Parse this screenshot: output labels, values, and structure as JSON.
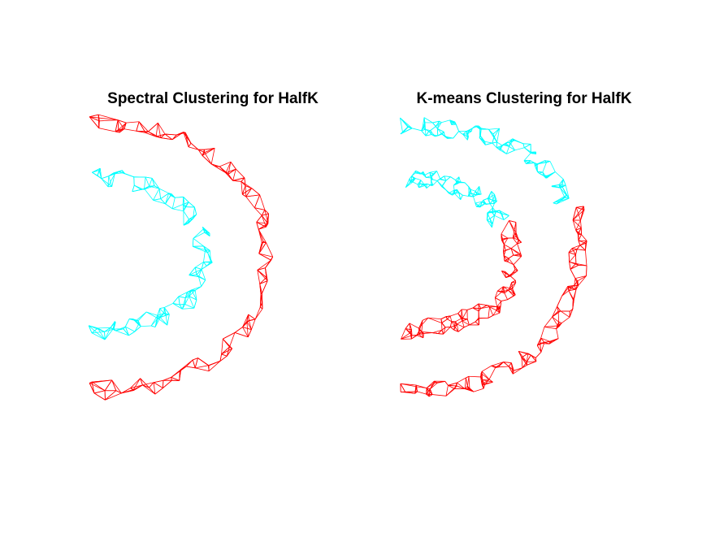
{
  "chart_data": [
    {
      "type": "scatter",
      "style": "k-nearest-neighbour graph edges drawn between points",
      "title": "Spectral Clustering for HalfK",
      "xlabel": "",
      "ylabel": "",
      "axes_visible": false,
      "grid": false,
      "legend": "none",
      "series": [
        {
          "color": "#ff0000",
          "shape": "outer half-ring",
          "points": [
            [
              -7.2,
              8.2
            ],
            [
              -5.5,
              8.0
            ],
            [
              -3.5,
              7.8
            ],
            [
              -1.5,
              7.2
            ],
            [
              0.2,
              6.2
            ],
            [
              1.6,
              5.0
            ],
            [
              2.6,
              3.4
            ],
            [
              3.2,
              1.6
            ],
            [
              3.4,
              0.0
            ],
            [
              3.2,
              -1.6
            ],
            [
              2.6,
              -3.4
            ],
            [
              1.6,
              -5.0
            ],
            [
              0.2,
              -6.2
            ],
            [
              -1.5,
              -7.2
            ],
            [
              -3.5,
              -7.8
            ],
            [
              -5.5,
              -8.0
            ],
            [
              -7.2,
              -8.2
            ]
          ]
        },
        {
          "color": "#00ffff",
          "shape": "inner half-ring",
          "points": [
            [
              -7.2,
              4.9
            ],
            [
              -5.5,
              4.8
            ],
            [
              -3.9,
              4.4
            ],
            [
              -2.4,
              3.6
            ],
            [
              -1.3,
              2.5
            ],
            [
              -0.8,
              1.3
            ],
            [
              -0.6,
              0.0
            ],
            [
              -0.8,
              -1.3
            ],
            [
              -1.4,
              -2.5
            ],
            [
              -2.4,
              -3.3
            ],
            [
              -3.9,
              -3.9
            ],
            [
              -5.5,
              -4.3
            ],
            [
              -7.2,
              -4.6
            ]
          ]
        }
      ]
    },
    {
      "type": "scatter",
      "style": "k-nearest-neighbour graph edges drawn between points",
      "title": "K-means Clustering for HalfK",
      "xlabel": "",
      "ylabel": "",
      "axes_visible": false,
      "grid": false,
      "legend": "none",
      "series": [
        {
          "color": "#00ffff",
          "shape": "upper part of outer ring",
          "points": [
            [
              -7.2,
              8.2
            ],
            [
              -5.5,
              8.0
            ],
            [
              -3.5,
              7.8
            ],
            [
              -1.5,
              7.2
            ],
            [
              0.2,
              6.2
            ],
            [
              1.6,
              5.0
            ],
            [
              2.3,
              3.8
            ]
          ]
        },
        {
          "color": "#00ffff",
          "shape": "upper part of inner ring",
          "points": [
            [
              -7.2,
              4.9
            ],
            [
              -5.5,
              4.8
            ],
            [
              -3.9,
              4.4
            ],
            [
              -2.4,
              3.6
            ],
            [
              -1.4,
              2.4
            ]
          ]
        },
        {
          "color": "#ff0000",
          "shape": "lower part of outer ring",
          "points": [
            [
              3.1,
              2.6
            ],
            [
              3.3,
              1.0
            ],
            [
              3.3,
              -0.8
            ],
            [
              3.0,
              -2.2
            ],
            [
              2.4,
              -3.6
            ],
            [
              1.4,
              -5.1
            ],
            [
              0.1,
              -6.3
            ],
            [
              -1.5,
              -7.2
            ],
            [
              -3.5,
              -7.8
            ],
            [
              -5.5,
              -8.0
            ],
            [
              -7.2,
              -8.2
            ]
          ]
        },
        {
          "color": "#ff0000",
          "shape": "lower part of inner ring",
          "points": [
            [
              -1.0,
              1.8
            ],
            [
              -0.7,
              0.6
            ],
            [
              -0.7,
              -0.8
            ],
            [
              -1.1,
              -2.0
            ],
            [
              -1.9,
              -3.0
            ],
            [
              -3.2,
              -3.7
            ],
            [
              -4.8,
              -4.1
            ],
            [
              -6.0,
              -4.4
            ],
            [
              -7.2,
              -4.6
            ]
          ]
        }
      ]
    }
  ]
}
